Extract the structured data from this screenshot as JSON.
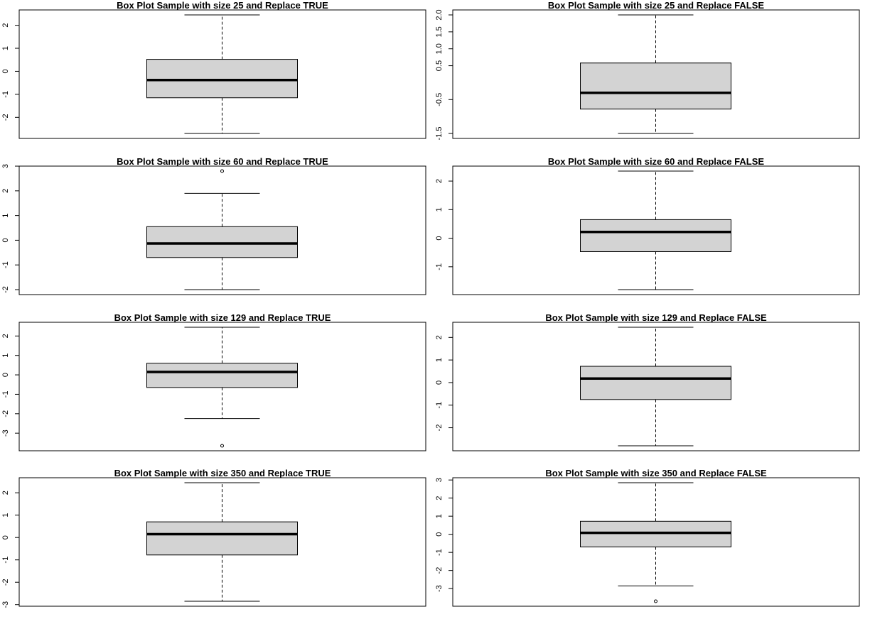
{
  "chart_data": [
    {
      "type": "box",
      "title": "Box Plot Sample with size 25 and Replace TRUE",
      "ylim": [
        -2.7,
        2.45
      ],
      "yticks": [
        {
          "value": 2,
          "label": "2"
        },
        {
          "value": 1,
          "label": "1"
        },
        {
          "value": 0,
          "label": "0"
        },
        {
          "value": -1,
          "label": "-1"
        },
        {
          "value": -2,
          "label": "-2"
        }
      ],
      "box": {
        "whisker_low": -2.7,
        "q1": -1.15,
        "median": -0.38,
        "q3": 0.52,
        "whisker_high": 2.45
      },
      "outliers": []
    },
    {
      "type": "box",
      "title": "Box Plot Sample with size 25 and Replace FALSE",
      "ylim": [
        -1.5,
        2.0
      ],
      "yticks": [
        {
          "value": 2.0,
          "label": "2.0"
        },
        {
          "value": 1.5,
          "label": "1.5"
        },
        {
          "value": 1.0,
          "label": "1.0"
        },
        {
          "value": 0.5,
          "label": "0.5"
        },
        {
          "value": -0.5,
          "label": "-0.5"
        },
        {
          "value": -1.5,
          "label": "-1.5"
        }
      ],
      "box": {
        "whisker_low": -1.5,
        "q1": -0.78,
        "median": -0.3,
        "q3": 0.58,
        "whisker_high": 2.0
      },
      "outliers": []
    },
    {
      "type": "box",
      "title": "Box Plot Sample with size 60 and Replace TRUE",
      "ylim": [
        -2.0,
        2.8
      ],
      "yticks": [
        {
          "value": 3,
          "label": "3"
        },
        {
          "value": 2,
          "label": "2"
        },
        {
          "value": 1,
          "label": "1"
        },
        {
          "value": 0,
          "label": "0"
        },
        {
          "value": -1,
          "label": "-1"
        },
        {
          "value": -2,
          "label": "-2"
        }
      ],
      "box": {
        "whisker_low": -2.0,
        "q1": -0.7,
        "median": -0.13,
        "q3": 0.55,
        "whisker_high": 1.9
      },
      "outliers": [
        2.8
      ]
    },
    {
      "type": "box",
      "title": "Box Plot Sample with size 60 and Replace FALSE",
      "ylim": [
        -1.8,
        2.35
      ],
      "yticks": [
        {
          "value": 2,
          "label": "2"
        },
        {
          "value": 1,
          "label": "1"
        },
        {
          "value": 0,
          "label": "0"
        },
        {
          "value": -1,
          "label": "-1"
        }
      ],
      "box": {
        "whisker_low": -1.8,
        "q1": -0.47,
        "median": 0.22,
        "q3": 0.65,
        "whisker_high": 2.35
      },
      "outliers": []
    },
    {
      "type": "box",
      "title": "Box Plot Sample with size 129 and Replace TRUE",
      "ylim": [
        -3.65,
        2.45
      ],
      "yticks": [
        {
          "value": 2,
          "label": "2"
        },
        {
          "value": 1,
          "label": "1"
        },
        {
          "value": 0,
          "label": "0"
        },
        {
          "value": -1,
          "label": "-1"
        },
        {
          "value": -2,
          "label": "-2"
        },
        {
          "value": -3,
          "label": "-3"
        }
      ],
      "box": {
        "whisker_low": -2.25,
        "q1": -0.65,
        "median": 0.15,
        "q3": 0.6,
        "whisker_high": 2.45
      },
      "outliers": [
        -3.65
      ]
    },
    {
      "type": "box",
      "title": "Box Plot Sample with size 129 and Replace FALSE",
      "ylim": [
        -2.8,
        2.45
      ],
      "yticks": [
        {
          "value": 2,
          "label": "2"
        },
        {
          "value": 1,
          "label": "1"
        },
        {
          "value": 0,
          "label": "0"
        },
        {
          "value": -1,
          "label": "-1"
        },
        {
          "value": -2,
          "label": "-2"
        }
      ],
      "box": {
        "whisker_low": -2.8,
        "q1": -0.75,
        "median": 0.18,
        "q3": 0.72,
        "whisker_high": 2.45
      },
      "outliers": []
    },
    {
      "type": "box",
      "title": "Box Plot Sample with size 350 and Replace TRUE",
      "ylim": [
        -2.85,
        2.45
      ],
      "yticks": [
        {
          "value": 2,
          "label": "2"
        },
        {
          "value": 1,
          "label": "1"
        },
        {
          "value": 0,
          "label": "0"
        },
        {
          "value": -1,
          "label": "-1"
        },
        {
          "value": -2,
          "label": "-2"
        },
        {
          "value": -3,
          "label": "-3"
        }
      ],
      "box": {
        "whisker_low": -2.85,
        "q1": -0.78,
        "median": 0.15,
        "q3": 0.7,
        "whisker_high": 2.45
      },
      "outliers": []
    },
    {
      "type": "box",
      "title": "Box Plot Sample with size 350 and Replace FALSE",
      "ylim": [
        -3.7,
        2.85
      ],
      "yticks": [
        {
          "value": 3,
          "label": "3"
        },
        {
          "value": 2,
          "label": "2"
        },
        {
          "value": 1,
          "label": "1"
        },
        {
          "value": 0,
          "label": "0"
        },
        {
          "value": -1,
          "label": "-1"
        },
        {
          "value": -2,
          "label": "-2"
        },
        {
          "value": -3,
          "label": "-3"
        }
      ],
      "box": {
        "whisker_low": -2.85,
        "q1": -0.7,
        "median": 0.08,
        "q3": 0.72,
        "whisker_high": 2.85
      },
      "outliers": [
        -3.7
      ]
    }
  ],
  "colors": {
    "box_fill": "#d3d3d3",
    "stroke": "#000000",
    "background": "#ffffff"
  }
}
